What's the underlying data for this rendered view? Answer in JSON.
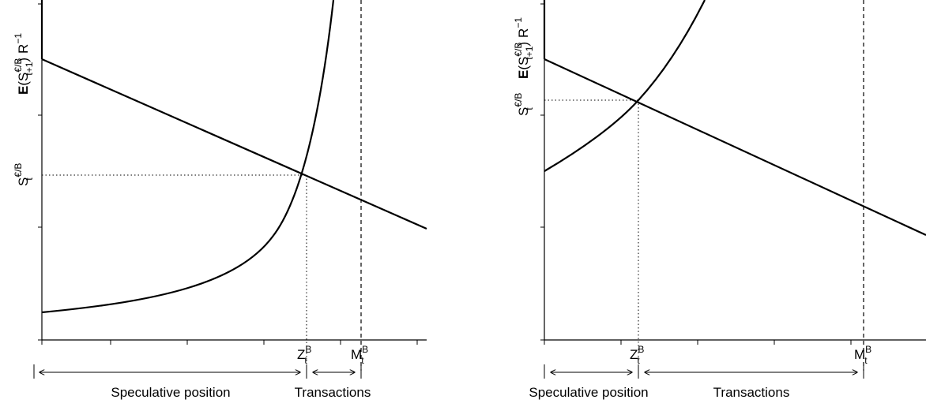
{
  "left_panel": {
    "y_axis_label_top": {
      "prefix": "E",
      "paren_open": "(S",
      "sup": "€/B",
      "sub": "t+1",
      "paren_close": ")",
      "r": "R",
      "r_sup": "−1"
    },
    "y_axis_label_mid": {
      "base": "S",
      "sup": "€/B",
      "sub": "t"
    },
    "x_marker_z": {
      "base": "Z",
      "sup": "B",
      "sub": "t"
    },
    "x_marker_m": {
      "base": "M",
      "sup": "B",
      "sub": "t"
    },
    "segment_labels": [
      "Speculative position",
      "Transactions"
    ]
  },
  "right_panel": {
    "y_axis_label_top": {
      "prefix": "E",
      "paren_open": "(S",
      "sup": "€/B",
      "sub": "t+1",
      "paren_close": ")",
      "r": "R",
      "r_sup": "−1"
    },
    "y_axis_label_mid": {
      "base": "S",
      "sup": "€/B",
      "sub": "t"
    },
    "x_marker_z": {
      "base": "Z",
      "sup": "B",
      "sub": "t"
    },
    "x_marker_m": {
      "base": "M",
      "sup": "B",
      "sub": "t"
    },
    "segment_labels": [
      "Speculative position",
      "Transactions"
    ]
  }
}
